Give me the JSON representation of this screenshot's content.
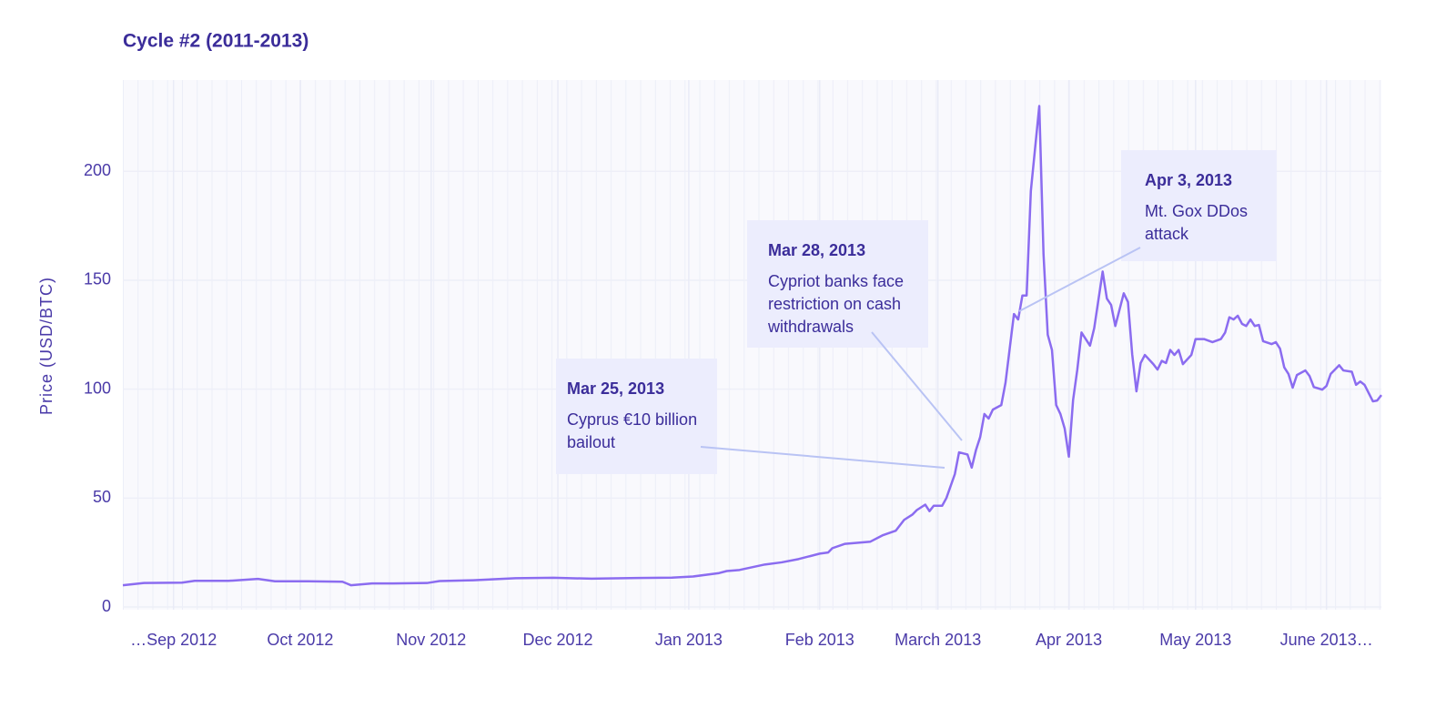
{
  "chart_data": {
    "type": "line",
    "title": "Cycle #2 (2011-2013)",
    "ylabel": "Price (USD/BTC)",
    "x": [
      "2012-08-20",
      "2012-08-25",
      "2012-09-03",
      "2012-09-06",
      "2012-09-14",
      "2012-09-21",
      "2012-09-25",
      "2012-10-03",
      "2012-10-11",
      "2012-10-13",
      "2012-10-18",
      "2012-10-23",
      "2012-10-31",
      "2012-11-03",
      "2012-11-11",
      "2012-11-21",
      "2012-11-30",
      "2012-12-09",
      "2012-12-20",
      "2012-12-28",
      "2013-01-02",
      "2013-01-08",
      "2013-01-10",
      "2013-01-13",
      "2013-01-19",
      "2013-01-23",
      "2013-01-27",
      "2013-02-01",
      "2013-02-03",
      "2013-02-04",
      "2013-02-07",
      "2013-02-13",
      "2013-02-16",
      "2013-02-19",
      "2013-02-21",
      "2013-02-23",
      "2013-02-24",
      "2013-02-26",
      "2013-02-27",
      "2013-02-28",
      "2013-03-02",
      "2013-03-03",
      "2013-03-05",
      "2013-03-06",
      "2013-03-08",
      "2013-03-09",
      "2013-03-10",
      "2013-03-11",
      "2013-03-12",
      "2013-03-13",
      "2013-03-14",
      "2013-03-16",
      "2013-03-17",
      "2013-03-19",
      "2013-03-20",
      "2013-03-21",
      "2013-03-22",
      "2013-03-23",
      "2013-03-25",
      "2013-03-26",
      "2013-03-27",
      "2013-03-28",
      "2013-03-29",
      "2013-03-30",
      "2013-03-31",
      "2013-04-01",
      "2013-04-02",
      "2013-04-03",
      "2013-04-04",
      "2013-04-06",
      "2013-04-07",
      "2013-04-09",
      "2013-04-10",
      "2013-04-11",
      "2013-04-12",
      "2013-04-14",
      "2013-04-15",
      "2013-04-16",
      "2013-04-17",
      "2013-04-18",
      "2013-04-19",
      "2013-04-21",
      "2013-04-22",
      "2013-04-23",
      "2013-04-24",
      "2013-04-25",
      "2013-04-26",
      "2013-04-27",
      "2013-04-28",
      "2013-04-30",
      "2013-05-01",
      "2013-05-03",
      "2013-05-05",
      "2013-05-07",
      "2013-05-08",
      "2013-05-09",
      "2013-05-10",
      "2013-05-11",
      "2013-05-12",
      "2013-05-13",
      "2013-05-14",
      "2013-05-15",
      "2013-05-16",
      "2013-05-17",
      "2013-05-19",
      "2013-05-20",
      "2013-05-21",
      "2013-05-22",
      "2013-05-23",
      "2013-05-24",
      "2013-05-25",
      "2013-05-27",
      "2013-05-28",
      "2013-05-29",
      "2013-05-31",
      "2013-06-01",
      "2013-06-02",
      "2013-06-03",
      "2013-06-04",
      "2013-06-05",
      "2013-06-07",
      "2013-06-08",
      "2013-06-09",
      "2013-06-10",
      "2013-06-12",
      "2013-06-13",
      "2013-06-14"
    ],
    "series": [
      {
        "name": "Price",
        "color": "#8b6cf0",
        "values": [
          10,
          11,
          11.2,
          12,
          12,
          12.9,
          11.8,
          11.8,
          11.6,
          10,
          10.8,
          10.8,
          11,
          11.9,
          12.3,
          13.2,
          13.4,
          13,
          13.3,
          13.5,
          14,
          15.5,
          16.5,
          17,
          19.5,
          20.5,
          22,
          24.5,
          25,
          27,
          29,
          30,
          33,
          35,
          40,
          42.5,
          44.5,
          47,
          44,
          46.5,
          46.5,
          50,
          61,
          71,
          70,
          64,
          72,
          78,
          88.6,
          86.5,
          90.6,
          92.7,
          103,
          134.5,
          132,
          143,
          143,
          191,
          230,
          162,
          125,
          118,
          92.7,
          88.6,
          82,
          69,
          95,
          109,
          126,
          120,
          128,
          154,
          141.6,
          138.7,
          129,
          144,
          140,
          116,
          99,
          112,
          115.7,
          111.5,
          109,
          113,
          112,
          118,
          115.7,
          118,
          111.5,
          115.7,
          123,
          123,
          121.6,
          123,
          126,
          133,
          132,
          133.7,
          130,
          129,
          132,
          129,
          129.5,
          122,
          120.7,
          121.6,
          118.6,
          110,
          107,
          100.7,
          106.5,
          108.6,
          106,
          101,
          99.8,
          101.5,
          107,
          109,
          111,
          108.6,
          108,
          102,
          103.5,
          102,
          94.4,
          94.8,
          97.3
        ]
      }
    ],
    "xlim": [
      "2012-08-20",
      "2013-06-14"
    ],
    "xticks": [
      {
        "value": "2012-09-01",
        "label": "…Sep 2012"
      },
      {
        "value": "2012-10-01",
        "label": "Oct 2012"
      },
      {
        "value": "2012-11-01",
        "label": "Nov 2012"
      },
      {
        "value": "2012-12-01",
        "label": "Dec 2012"
      },
      {
        "value": "2013-01-01",
        "label": "Jan 2013"
      },
      {
        "value": "2013-02-01",
        "label": "Feb 2013"
      },
      {
        "value": "2013-03-01",
        "label": "March 2013"
      },
      {
        "value": "2013-04-01",
        "label": "Apr 2013"
      },
      {
        "value": "2013-05-01",
        "label": "May 2013"
      },
      {
        "value": "2013-06-01",
        "label": "June 2013…"
      }
    ],
    "ylim": [
      -1.25,
      241.9
    ],
    "yticks": [
      0,
      50,
      100,
      150,
      200
    ],
    "grid": true,
    "annotations": [
      {
        "title": "Mar 25, 2013",
        "text": [
          "Cyprus €10 billion",
          "bailout"
        ]
      },
      {
        "title": "Mar 28, 2013",
        "text": [
          "Cypriot banks face",
          "restriction on cash",
          "withdrawals"
        ]
      },
      {
        "title": "Apr 3, 2013",
        "text": [
          "Mt. Gox DDos",
          "attack"
        ]
      }
    ]
  }
}
